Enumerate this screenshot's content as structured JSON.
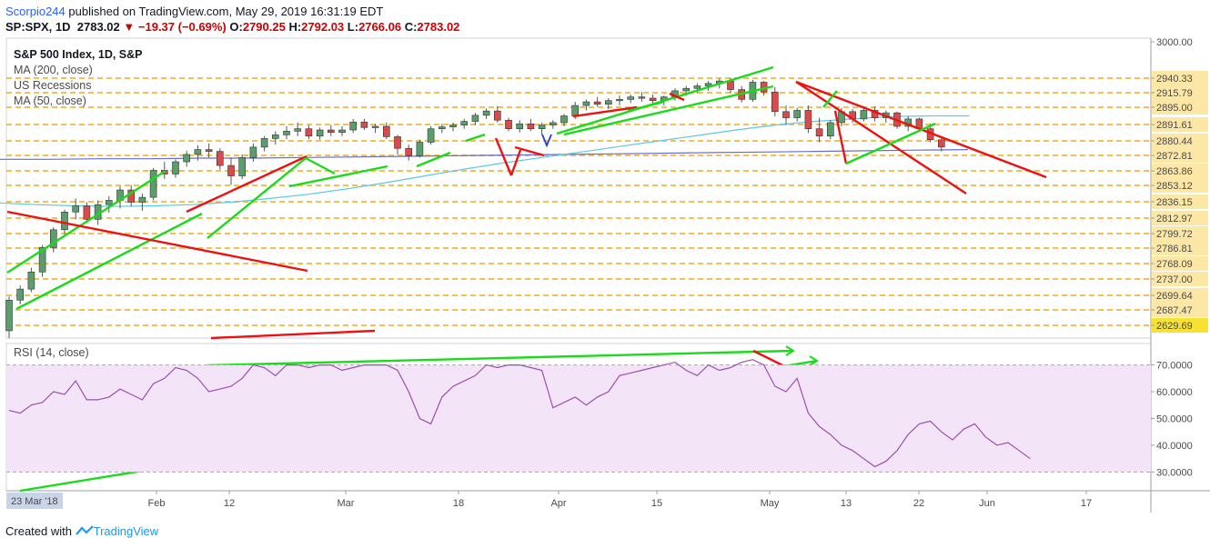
{
  "header": {
    "author": "Scorpio244",
    "published_text": " published on TradingView.com, May 29, 2019 16:31:19 EDT"
  },
  "quote": {
    "symbol": "SP:SPX, 1D",
    "last": "2783.02",
    "change": "−19.37 (−0.69%)",
    "open_label": "O:",
    "open": "2790.25",
    "high_label": "H:",
    "high": "2792.03",
    "low_label": "L:",
    "low": "2766.06",
    "close_label": "C:",
    "close": "2783.02"
  },
  "legend": {
    "title": "S&P 500 Index, 1D, S&P",
    "items": [
      "MA (200, close)",
      "US Recessions",
      "MA (50, close)"
    ]
  },
  "rsi_label": "RSI (14, close)",
  "footer": {
    "prefix": "Created with",
    "brand": "TradingView"
  },
  "chart_data": [
    {
      "type": "candlestick",
      "title": "S&P 500 Index, 1D, S&P",
      "price_ticks": [
        "3000.00",
        "2940.33",
        "2915.79",
        "2895.00",
        "2891.61",
        "2880.44",
        "2872.81",
        "2863.86",
        "2853.12",
        "2836.15",
        "2812.97",
        "2799.72",
        "2786.81",
        "2768.09",
        "2737.00",
        "2699.64",
        "2687.47",
        "2629.69"
      ],
      "last_price_tag": "2629.69",
      "time_axis": [
        "23 Mar '18",
        "Feb",
        "12",
        "Mar",
        "18",
        "Apr",
        "15",
        "May",
        "13",
        "22",
        "Jun",
        "17"
      ],
      "ma200_color": "#6a6ad0",
      "ma50_color": "#5ac8e8",
      "pattern_colors": {
        "bullish": "#1adb1a",
        "bearish": "#ee1111"
      },
      "candles": [
        [
          2532,
          2588,
          2520,
          2582
        ],
        [
          2582,
          2606,
          2575,
          2600
        ],
        [
          2600,
          2635,
          2595,
          2628
        ],
        [
          2628,
          2672,
          2620,
          2668
        ],
        [
          2668,
          2701,
          2660,
          2697
        ],
        [
          2697,
          2730,
          2690,
          2726
        ],
        [
          2726,
          2748,
          2714,
          2736
        ],
        [
          2736,
          2742,
          2708,
          2714
        ],
        [
          2714,
          2745,
          2705,
          2738
        ],
        [
          2738,
          2752,
          2725,
          2745
        ],
        [
          2745,
          2768,
          2732,
          2762
        ],
        [
          2762,
          2770,
          2735,
          2742
        ],
        [
          2742,
          2756,
          2728,
          2750
        ],
        [
          2750,
          2798,
          2745,
          2794
        ],
        [
          2794,
          2808,
          2780,
          2788
        ],
        [
          2788,
          2812,
          2782,
          2808
        ],
        [
          2808,
          2826,
          2800,
          2820
        ],
        [
          2820,
          2835,
          2810,
          2828
        ],
        [
          2828,
          2838,
          2815,
          2825
        ],
        [
          2825,
          2830,
          2795,
          2802
        ],
        [
          2802,
          2815,
          2770,
          2785
        ],
        [
          2785,
          2820,
          2780,
          2815
        ],
        [
          2815,
          2838,
          2808,
          2832
        ],
        [
          2832,
          2850,
          2825,
          2846
        ],
        [
          2846,
          2858,
          2836,
          2852
        ],
        [
          2852,
          2866,
          2845,
          2858
        ],
        [
          2858,
          2872,
          2850,
          2862
        ],
        [
          2862,
          2868,
          2845,
          2850
        ],
        [
          2850,
          2864,
          2844,
          2860
        ],
        [
          2860,
          2868,
          2850,
          2856
        ],
        [
          2856,
          2866,
          2850,
          2860
        ],
        [
          2860,
          2878,
          2855,
          2873
        ],
        [
          2873,
          2878,
          2860,
          2864
        ],
        [
          2864,
          2870,
          2855,
          2866
        ],
        [
          2866,
          2872,
          2845,
          2849
        ],
        [
          2849,
          2852,
          2820,
          2830
        ],
        [
          2830,
          2836,
          2810,
          2818
        ],
        [
          2818,
          2844,
          2815,
          2840
        ],
        [
          2840,
          2866,
          2836,
          2862
        ],
        [
          2862,
          2870,
          2855,
          2865
        ],
        [
          2865,
          2872,
          2858,
          2868
        ],
        [
          2868,
          2878,
          2862,
          2874
        ],
        [
          2874,
          2888,
          2868,
          2884
        ],
        [
          2884,
          2895,
          2878,
          2891
        ],
        [
          2891,
          2899,
          2872,
          2876
        ],
        [
          2876,
          2880,
          2858,
          2862
        ],
        [
          2862,
          2876,
          2856,
          2870
        ],
        [
          2870,
          2878,
          2858,
          2862
        ],
        [
          2862,
          2872,
          2852,
          2868
        ],
        [
          2868,
          2876,
          2862,
          2872
        ],
        [
          2872,
          2886,
          2866,
          2883
        ],
        [
          2883,
          2906,
          2878,
          2900
        ],
        [
          2900,
          2910,
          2892,
          2906
        ],
        [
          2906,
          2914,
          2898,
          2902
        ],
        [
          2902,
          2912,
          2894,
          2908
        ],
        [
          2908,
          2916,
          2900,
          2910
        ],
        [
          2910,
          2918,
          2904,
          2914
        ],
        [
          2914,
          2922,
          2906,
          2912
        ],
        [
          2912,
          2918,
          2902,
          2908
        ],
        [
          2908,
          2916,
          2900,
          2914
        ],
        [
          2914,
          2928,
          2908,
          2924
        ],
        [
          2924,
          2932,
          2916,
          2928
        ],
        [
          2928,
          2936,
          2920,
          2932
        ],
        [
          2932,
          2940,
          2924,
          2936
        ],
        [
          2936,
          2944,
          2928,
          2940
        ],
        [
          2940,
          2945,
          2920,
          2926
        ],
        [
          2926,
          2932,
          2905,
          2910
        ],
        [
          2910,
          2942,
          2906,
          2938
        ],
        [
          2938,
          2940,
          2916,
          2922
        ],
        [
          2922,
          2930,
          2882,
          2890
        ],
        [
          2890,
          2900,
          2868,
          2880
        ],
        [
          2880,
          2896,
          2874,
          2892
        ],
        [
          2892,
          2900,
          2855,
          2862
        ],
        [
          2862,
          2880,
          2840,
          2850
        ],
        [
          2850,
          2876,
          2845,
          2872
        ],
        [
          2872,
          2896,
          2866,
          2890
        ],
        [
          2890,
          2894,
          2872,
          2878
        ],
        [
          2878,
          2896,
          2874,
          2892
        ],
        [
          2892,
          2898,
          2874,
          2880
        ],
        [
          2880,
          2892,
          2872,
          2888
        ],
        [
          2888,
          2890,
          2862,
          2866
        ],
        [
          2866,
          2882,
          2858,
          2878
        ],
        [
          2878,
          2880,
          2858,
          2862
        ],
        [
          2862,
          2870,
          2840,
          2844
        ],
        [
          2844,
          2850,
          2825,
          2832
        ]
      ],
      "ma200": [
        2812,
        2812,
        2813,
        2813,
        2814,
        2814,
        2815,
        2816,
        2817,
        2818,
        2819,
        2820,
        2821,
        2822,
        2823,
        2824,
        2825,
        2826,
        2827,
        2828
      ],
      "ma50": [
        2741,
        2738,
        2736,
        2735,
        2736,
        2738,
        2742,
        2748,
        2755,
        2764,
        2774,
        2785,
        2796,
        2806,
        2815,
        2824,
        2833,
        2842,
        2851,
        2860,
        2868,
        2874,
        2878,
        2882,
        2883,
        2883
      ]
    },
    {
      "type": "line",
      "title": "RSI (14, close)",
      "y_ticks": [
        "70.0000",
        "60.0000",
        "50.0000",
        "40.0000",
        "30.0000"
      ],
      "ylim": [
        23,
        78
      ],
      "band": [
        30,
        70
      ],
      "values": [
        53,
        52,
        55,
        56,
        60,
        59,
        64,
        57,
        57,
        58,
        61,
        59,
        57,
        63,
        65,
        69,
        68,
        65,
        60,
        61,
        62,
        65,
        70,
        69,
        66,
        70,
        70,
        69,
        70,
        70,
        68,
        69,
        70,
        70,
        70,
        68,
        60,
        50,
        48,
        58,
        62,
        64,
        66,
        70,
        69,
        70,
        70,
        69,
        68,
        54,
        56,
        58,
        55,
        58,
        60,
        66,
        67,
        68,
        69,
        70,
        71,
        68,
        66,
        70,
        68,
        69,
        71,
        72,
        70,
        62,
        60,
        65,
        52,
        47,
        44,
        40,
        38,
        35,
        32,
        34,
        38,
        44,
        48,
        49,
        45,
        42,
        46,
        48,
        43,
        40,
        41,
        38,
        35
      ]
    }
  ]
}
